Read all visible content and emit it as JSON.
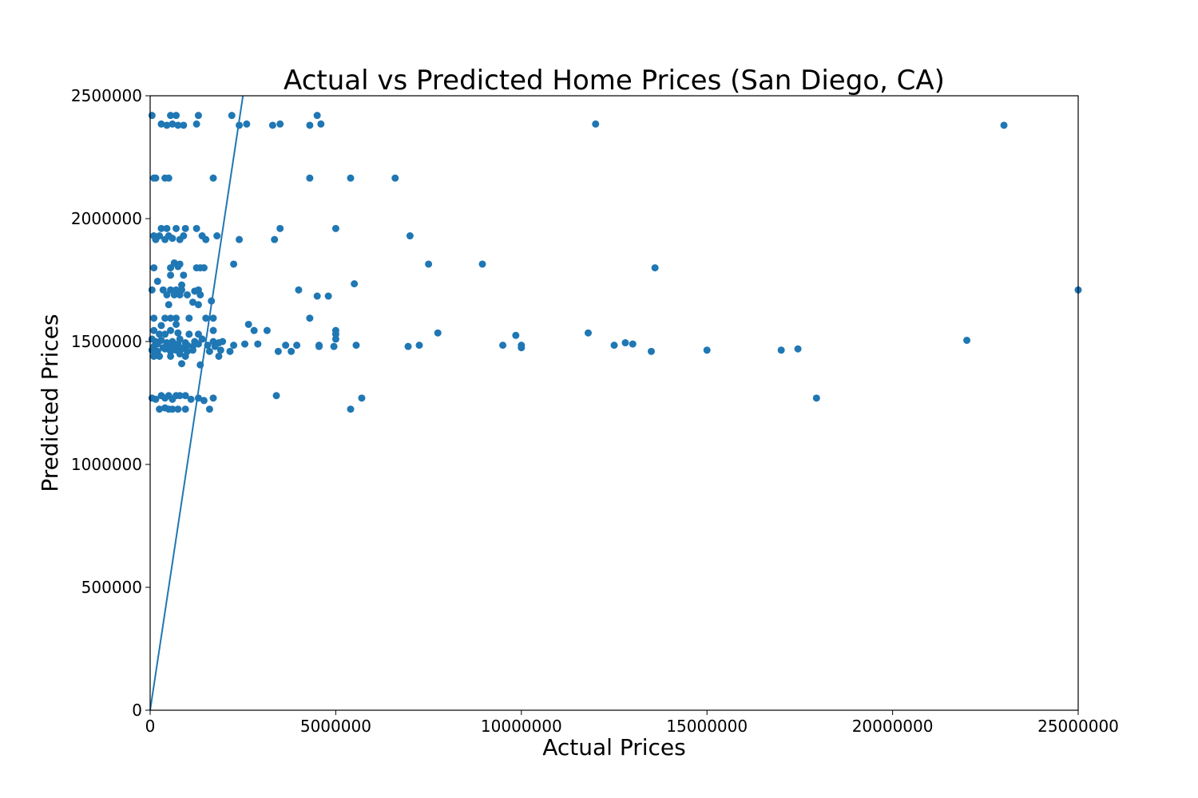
{
  "chart_data": {
    "type": "scatter",
    "title": "Actual vs Predicted Home Prices (San Diego, CA)",
    "xlabel": "Actual Prices",
    "ylabel": "Predicted Prices",
    "xlim": [
      0,
      25000000
    ],
    "ylim": [
      0,
      2500000
    ],
    "xticks": [
      0,
      5000000,
      10000000,
      15000000,
      20000000,
      25000000
    ],
    "xtick_labels": [
      "0",
      "5000000",
      "10000000",
      "15000000",
      "20000000",
      "25000000"
    ],
    "yticks": [
      0,
      500000,
      1000000,
      1500000,
      2000000,
      2500000
    ],
    "ytick_labels": [
      "0",
      "500000",
      "1000000",
      "1500000",
      "2000000",
      "2500000"
    ],
    "grid": false,
    "color": "#1f77b4",
    "reference_line": {
      "from": [
        0,
        0
      ],
      "to": [
        2500000,
        2500000
      ]
    },
    "points": [
      [
        50000,
        2420000
      ],
      [
        300000,
        2385000
      ],
      [
        450000,
        2380000
      ],
      [
        550000,
        2420000
      ],
      [
        600000,
        2385000
      ],
      [
        700000,
        2420000
      ],
      [
        750000,
        2380000
      ],
      [
        900000,
        2380000
      ],
      [
        1250000,
        2385000
      ],
      [
        1300000,
        2420000
      ],
      [
        2200000,
        2420000
      ],
      [
        2400000,
        2380000
      ],
      [
        2600000,
        2385000
      ],
      [
        3300000,
        2380000
      ],
      [
        3500000,
        2385000
      ],
      [
        4300000,
        2380000
      ],
      [
        4500000,
        2420000
      ],
      [
        4600000,
        2385000
      ],
      [
        12000000,
        2385000
      ],
      [
        23000000,
        2380000
      ],
      [
        100000,
        2165000
      ],
      [
        150000,
        2165000
      ],
      [
        400000,
        2165000
      ],
      [
        500000,
        2165000
      ],
      [
        1700000,
        2165000
      ],
      [
        4300000,
        2165000
      ],
      [
        5400000,
        2165000
      ],
      [
        6600000,
        2165000
      ],
      [
        100000,
        1930000
      ],
      [
        150000,
        1915000
      ],
      [
        250000,
        1930000
      ],
      [
        300000,
        1960000
      ],
      [
        400000,
        1915000
      ],
      [
        450000,
        1960000
      ],
      [
        500000,
        1930000
      ],
      [
        600000,
        1920000
      ],
      [
        700000,
        1960000
      ],
      [
        800000,
        1915000
      ],
      [
        900000,
        1930000
      ],
      [
        950000,
        1960000
      ],
      [
        1250000,
        1960000
      ],
      [
        1400000,
        1930000
      ],
      [
        1500000,
        1915000
      ],
      [
        1800000,
        1930000
      ],
      [
        2400000,
        1915000
      ],
      [
        3350000,
        1915000
      ],
      [
        3500000,
        1960000
      ],
      [
        5000000,
        1960000
      ],
      [
        7000000,
        1930000
      ],
      [
        100000,
        1800000
      ],
      [
        550000,
        1800000
      ],
      [
        650000,
        1820000
      ],
      [
        750000,
        1805000
      ],
      [
        800000,
        1815000
      ],
      [
        1250000,
        1800000
      ],
      [
        1350000,
        1800000
      ],
      [
        1450000,
        1800000
      ],
      [
        2250000,
        1815000
      ],
      [
        7500000,
        1815000
      ],
      [
        8950000,
        1815000
      ],
      [
        13600000,
        1800000
      ],
      [
        200000,
        1745000
      ],
      [
        550000,
        1770000
      ],
      [
        850000,
        1730000
      ],
      [
        900000,
        1770000
      ],
      [
        5500000,
        1735000
      ],
      [
        50000,
        1710000
      ],
      [
        350000,
        1710000
      ],
      [
        450000,
        1690000
      ],
      [
        550000,
        1710000
      ],
      [
        650000,
        1690000
      ],
      [
        700000,
        1710000
      ],
      [
        800000,
        1690000
      ],
      [
        850000,
        1710000
      ],
      [
        1000000,
        1690000
      ],
      [
        1200000,
        1705000
      ],
      [
        1300000,
        1710000
      ],
      [
        1350000,
        1690000
      ],
      [
        4000000,
        1710000
      ],
      [
        4500000,
        1685000
      ],
      [
        4800000,
        1685000
      ],
      [
        25000000,
        1710000
      ],
      [
        500000,
        1650000
      ],
      [
        1150000,
        1660000
      ],
      [
        1300000,
        1650000
      ],
      [
        1650000,
        1665000
      ],
      [
        100000,
        1595000
      ],
      [
        400000,
        1595000
      ],
      [
        550000,
        1595000
      ],
      [
        700000,
        1595000
      ],
      [
        1050000,
        1595000
      ],
      [
        1500000,
        1595000
      ],
      [
        1700000,
        1595000
      ],
      [
        4300000,
        1595000
      ],
      [
        300000,
        1565000
      ],
      [
        700000,
        1570000
      ],
      [
        2650000,
        1570000
      ],
      [
        100000,
        1545000
      ],
      [
        250000,
        1530000
      ],
      [
        400000,
        1530000
      ],
      [
        550000,
        1545000
      ],
      [
        750000,
        1535000
      ],
      [
        1050000,
        1530000
      ],
      [
        1300000,
        1530000
      ],
      [
        1700000,
        1545000
      ],
      [
        2800000,
        1545000
      ],
      [
        3150000,
        1545000
      ],
      [
        5000000,
        1545000
      ],
      [
        5000000,
        1530000
      ],
      [
        7750000,
        1535000
      ],
      [
        9850000,
        1525000
      ],
      [
        11800000,
        1535000
      ],
      [
        50000,
        1510000
      ],
      [
        150000,
        1500000
      ],
      [
        300000,
        1505000
      ],
      [
        450000,
        1495000
      ],
      [
        600000,
        1500000
      ],
      [
        800000,
        1510000
      ],
      [
        950000,
        1495000
      ],
      [
        1200000,
        1500000
      ],
      [
        1400000,
        1510000
      ],
      [
        1700000,
        1500000
      ],
      [
        1850000,
        1495000
      ],
      [
        1950000,
        1500000
      ],
      [
        5000000,
        1510000
      ],
      [
        12800000,
        1495000
      ],
      [
        22000000,
        1505000
      ],
      [
        100000,
        1480000
      ],
      [
        200000,
        1490000
      ],
      [
        350000,
        1475000
      ],
      [
        500000,
        1485000
      ],
      [
        650000,
        1480000
      ],
      [
        750000,
        1490000
      ],
      [
        900000,
        1475000
      ],
      [
        1000000,
        1485000
      ],
      [
        1150000,
        1480000
      ],
      [
        1300000,
        1490000
      ],
      [
        1550000,
        1485000
      ],
      [
        1750000,
        1480000
      ],
      [
        2250000,
        1485000
      ],
      [
        2550000,
        1490000
      ],
      [
        2900000,
        1490000
      ],
      [
        3650000,
        1485000
      ],
      [
        3950000,
        1485000
      ],
      [
        4550000,
        1485000
      ],
      [
        4950000,
        1480000
      ],
      [
        5550000,
        1485000
      ],
      [
        6950000,
        1480000
      ],
      [
        7250000,
        1485000
      ],
      [
        9500000,
        1485000
      ],
      [
        10000000,
        1485000
      ],
      [
        12500000,
        1485000
      ],
      [
        13000000,
        1490000
      ],
      [
        50000,
        1465000
      ],
      [
        200000,
        1460000
      ],
      [
        400000,
        1470000
      ],
      [
        550000,
        1460000
      ],
      [
        700000,
        1465000
      ],
      [
        850000,
        1470000
      ],
      [
        1000000,
        1460000
      ],
      [
        1150000,
        1465000
      ],
      [
        1600000,
        1460000
      ],
      [
        1900000,
        1465000
      ],
      [
        2150000,
        1460000
      ],
      [
        3450000,
        1460000
      ],
      [
        3800000,
        1460000
      ],
      [
        4550000,
        1480000
      ],
      [
        10000000,
        1475000
      ],
      [
        13500000,
        1460000
      ],
      [
        15000000,
        1465000
      ],
      [
        17000000,
        1465000
      ],
      [
        17450000,
        1470000
      ],
      [
        100000,
        1440000
      ],
      [
        250000,
        1440000
      ],
      [
        550000,
        1440000
      ],
      [
        800000,
        1450000
      ],
      [
        950000,
        1440000
      ],
      [
        1850000,
        1440000
      ],
      [
        850000,
        1410000
      ],
      [
        1350000,
        1405000
      ],
      [
        50000,
        1270000
      ],
      [
        150000,
        1265000
      ],
      [
        300000,
        1280000
      ],
      [
        400000,
        1270000
      ],
      [
        500000,
        1280000
      ],
      [
        600000,
        1265000
      ],
      [
        700000,
        1280000
      ],
      [
        800000,
        1280000
      ],
      [
        950000,
        1280000
      ],
      [
        1100000,
        1265000
      ],
      [
        1300000,
        1270000
      ],
      [
        1450000,
        1260000
      ],
      [
        1700000,
        1270000
      ],
      [
        3400000,
        1280000
      ],
      [
        5700000,
        1270000
      ],
      [
        17950000,
        1270000
      ],
      [
        250000,
        1225000
      ],
      [
        400000,
        1230000
      ],
      [
        500000,
        1225000
      ],
      [
        600000,
        1225000
      ],
      [
        750000,
        1225000
      ],
      [
        950000,
        1225000
      ],
      [
        1600000,
        1225000
      ],
      [
        5400000,
        1225000
      ]
    ]
  }
}
